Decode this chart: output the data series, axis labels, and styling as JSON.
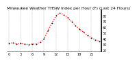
{
  "title": "Milwaukee Weather THSW Index per Hour (F) (Last 24 Hours)",
  "hours": [
    0,
    1,
    2,
    3,
    4,
    5,
    6,
    7,
    8,
    9,
    10,
    11,
    12,
    13,
    14,
    15,
    16,
    17,
    18,
    19,
    20,
    21,
    22,
    23
  ],
  "values": [
    32,
    33,
    31,
    32,
    31,
    30,
    31,
    31,
    34,
    40,
    55,
    68,
    80,
    85,
    82,
    77,
    70,
    63,
    57,
    52,
    46,
    42,
    38,
    36
  ],
  "line_color": "#ff0000",
  "marker_color": "#000000",
  "bg_color": "#ffffff",
  "grid_color": "#888888",
  "ylim": [
    18,
    90
  ],
  "ytick_values": [
    20,
    30,
    40,
    50,
    60,
    70,
    80
  ],
  "ytick_labels": [
    "20",
    "30",
    "40",
    "50",
    "60",
    "70",
    "80"
  ],
  "title_fontsize": 4.2,
  "axis_fontsize": 3.5,
  "linewidth": 0.9,
  "markersize": 1.8
}
